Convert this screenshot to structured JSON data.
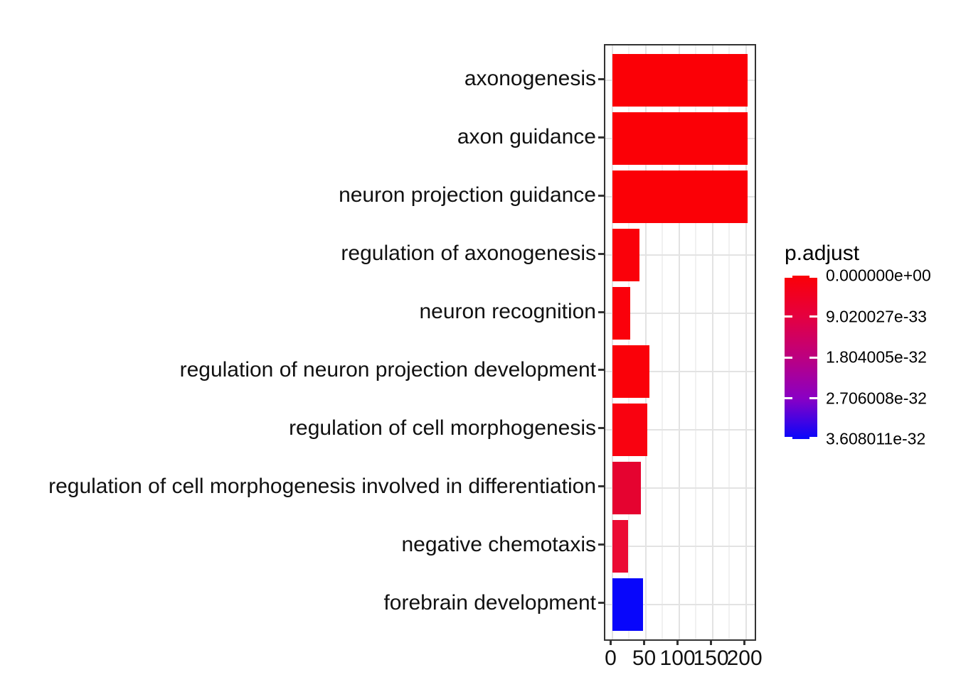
{
  "chart_data": {
    "type": "bar",
    "orientation": "horizontal",
    "title": "",
    "xlabel": "",
    "ylabel": "",
    "x_axis": {
      "major_ticks": [
        0,
        50,
        100,
        150,
        200
      ],
      "tick_labels": [
        "0",
        "50",
        "100",
        "150",
        "200"
      ],
      "minor_gridlines": [
        25,
        75,
        125,
        175
      ],
      "display_range": [
        -10,
        213
      ]
    },
    "grid": "on",
    "categories": [
      "axonogenesis",
      "axon guidance",
      "neuron projection guidance",
      "regulation of axonogenesis",
      "neuron recognition",
      "regulation of neuron projection development",
      "regulation of cell morphogenesis",
      "regulation of cell morphogenesis involved in differentiation",
      "negative chemotaxis",
      "forebrain development"
    ],
    "values": [
      203,
      203,
      203,
      41,
      27,
      56,
      53,
      43,
      24,
      46
    ],
    "bar_fill_colors": [
      "#FB0006",
      "#FB0006",
      "#FB0006",
      "#FA010A",
      "#FA010B",
      "#FA0109",
      "#F90210",
      "#E50330",
      "#EB0B34",
      "#0806FB"
    ],
    "p_adjust_color_estimates": [
      0,
      0,
      0,
      5e-34,
      6e-34,
      4e-34,
      1e-33,
      7e-33,
      6.5e-33,
      3.608011e-32
    ],
    "legend": {
      "title": "p.adjust",
      "position": "right",
      "tick_labels": [
        "0.000000e+00",
        "9.020027e-33",
        "1.804005e-32",
        "2.706008e-32",
        "3.608011e-32"
      ],
      "gradient_stop_colors": [
        "#FB0007",
        "#E50040",
        "#BC0080",
        "#8A00C4",
        "#0806FB"
      ]
    }
  }
}
